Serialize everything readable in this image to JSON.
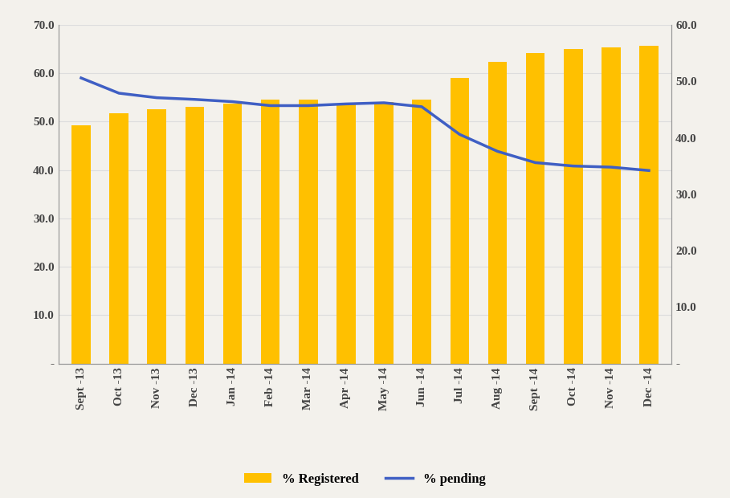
{
  "chart_data": {
    "type": "bar",
    "categories": [
      "Sept -13",
      "Oct -13",
      "Nov -13",
      "Dec -13",
      "Jan -14",
      "Feb -14",
      "Mar -14",
      "Apr -14",
      "May -14",
      "Jun -14",
      "Jul -14",
      "Aug -14",
      "Sept -14",
      "Oct -14",
      "Nov -14",
      "Dec -14"
    ],
    "series": [
      {
        "name": "% Registered",
        "type": "bar",
        "color": "#FFC000",
        "values": [
          49.3,
          51.8,
          52.6,
          53.1,
          53.8,
          54.5,
          54.5,
          53.8,
          54.1,
          54.5,
          59.1,
          62.4,
          64.2,
          65.1,
          65.4,
          65.7
        ]
      },
      {
        "name": "% pending",
        "type": "line",
        "color": "#3F5FC4",
        "axis": "y2",
        "values": [
          50.6,
          47.9,
          47.1,
          46.8,
          46.4,
          45.7,
          45.7,
          46.0,
          46.2,
          45.5,
          40.6,
          37.6,
          35.6,
          35.0,
          34.8,
          34.2
        ]
      }
    ],
    "ylim": [
      0,
      70
    ],
    "yticks": [
      {
        "value": 0,
        "label": "-"
      },
      {
        "value": 10,
        "label": "10.0"
      },
      {
        "value": 20,
        "label": "20.0"
      },
      {
        "value": 30,
        "label": "30.0"
      },
      {
        "value": 40,
        "label": "40.0"
      },
      {
        "value": 50,
        "label": "50.0"
      },
      {
        "value": 60,
        "label": "60.0"
      },
      {
        "value": 70,
        "label": "70.0"
      }
    ],
    "y2lim": [
      0,
      60
    ],
    "y2ticks": [
      {
        "value": 0,
        "label": "-"
      },
      {
        "value": 10,
        "label": "10.0"
      },
      {
        "value": 20,
        "label": "20.0"
      },
      {
        "value": 30,
        "label": "30.0"
      },
      {
        "value": 40,
        "label": "40.0"
      },
      {
        "value": 50,
        "label": "50.0"
      },
      {
        "value": 60,
        "label": "60.0"
      }
    ],
    "grid": true,
    "legend": "lower center"
  }
}
